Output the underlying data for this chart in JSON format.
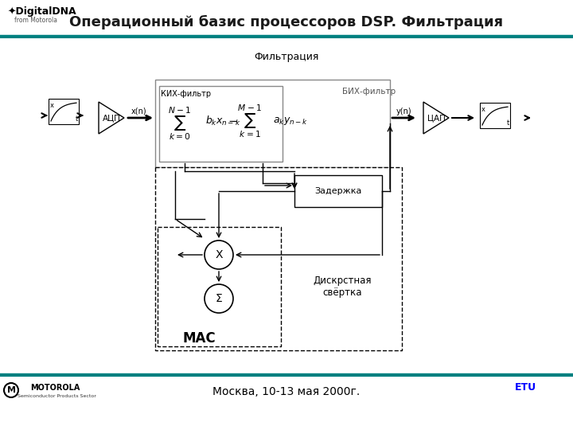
{
  "title": "Операционный базис процессоров DSP. Фильтрация",
  "footer": "Москва, 10-13 мая 2000г.",
  "title_color": "#1a1a1a",
  "teal_line_color": "#008080",
  "background": "#ffffff",
  "diagram_label_filtracia": "Фильтрация",
  "label_acp": "АЦП",
  "label_cap": "ЦАП",
  "label_fir": "КИХ-фильтр",
  "label_iir": "БИХ-фильтр",
  "label_zaderjka": "Задержка",
  "label_mac": "МАС",
  "label_diskr": "Дискрстная\nсвёртка",
  "label_x_circle": "X",
  "label_sum_circle": "Σ",
  "label_xn": "x(n)",
  "label_yn": "y(n)"
}
